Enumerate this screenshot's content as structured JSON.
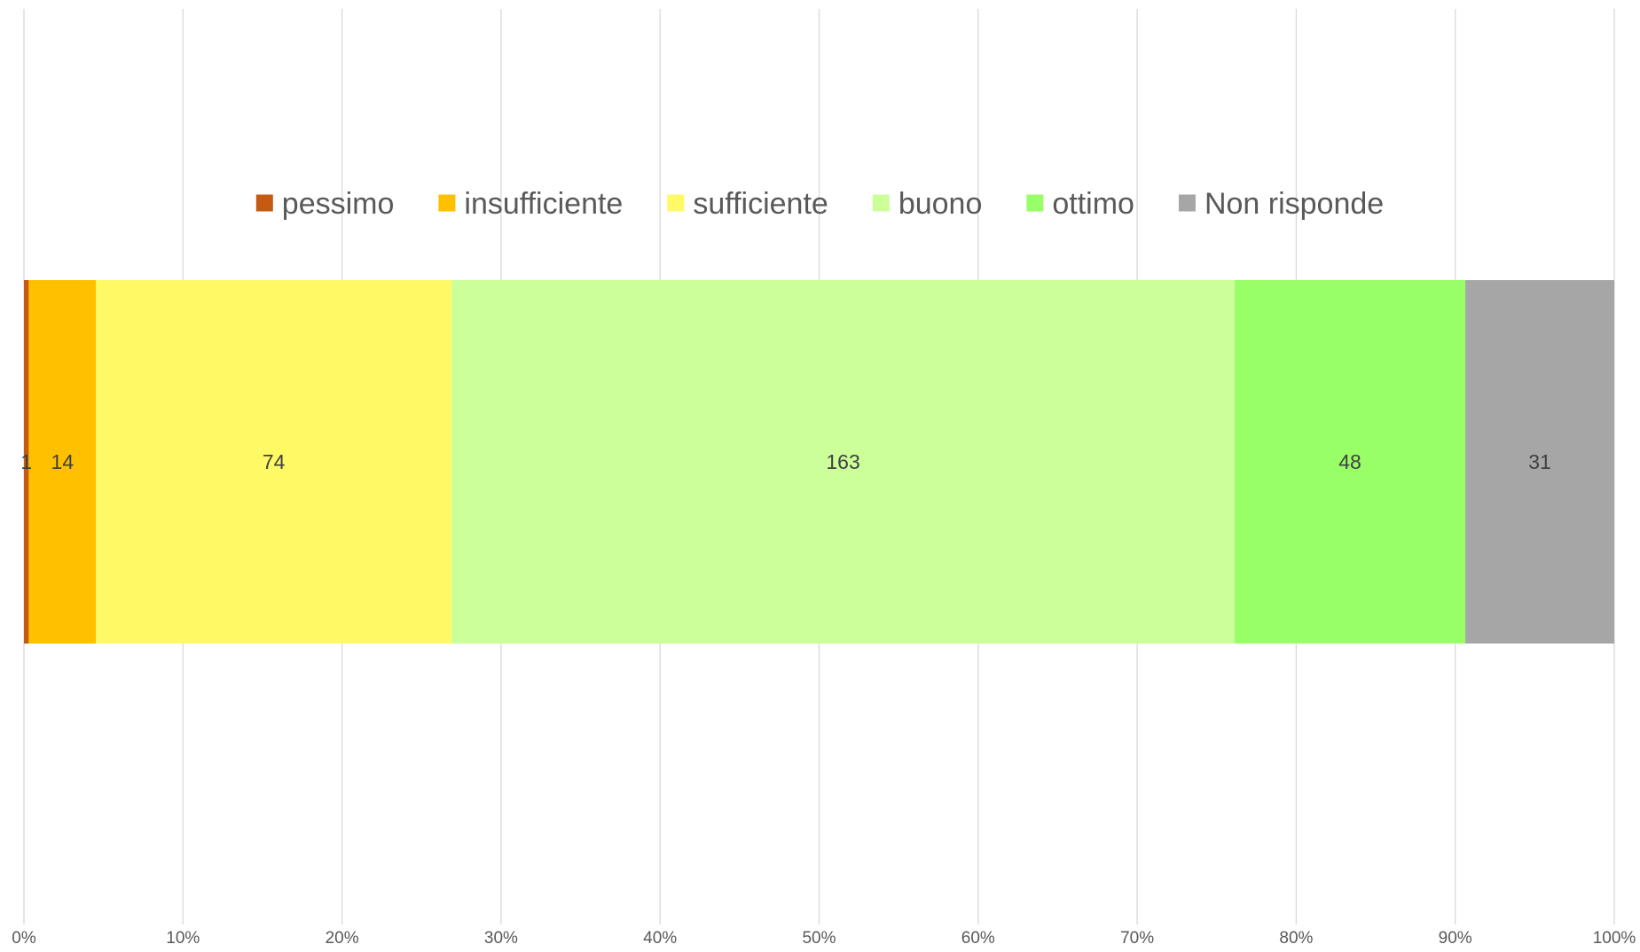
{
  "chart_data": {
    "type": "bar",
    "orientation": "horizontal",
    "stacked": "percent",
    "title": "",
    "xlabel": "",
    "ylabel": "",
    "xlim": [
      0,
      1
    ],
    "x_ticks": [
      "0%",
      "10%",
      "20%",
      "30%",
      "40%",
      "50%",
      "60%",
      "70%",
      "80%",
      "90%",
      "100%"
    ],
    "grid": "vertical",
    "legend_position": "top",
    "series": [
      {
        "name": "pessimo",
        "value": 1,
        "label": "1",
        "color": "#C55A11"
      },
      {
        "name": "insufficiente",
        "value": 14,
        "label": "14",
        "color": "#FFC000"
      },
      {
        "name": "sufficiente",
        "value": 74,
        "label": "74",
        "color": "#FFF966"
      },
      {
        "name": "buono",
        "value": 163,
        "label": "163",
        "color": "#CCFF99"
      },
      {
        "name": "ottimo",
        "value": 48,
        "label": "48",
        "color": "#99FF66"
      },
      {
        "name": "Non risponde",
        "value": 31,
        "label": "31",
        "color": "#A6A6A6"
      }
    ]
  }
}
